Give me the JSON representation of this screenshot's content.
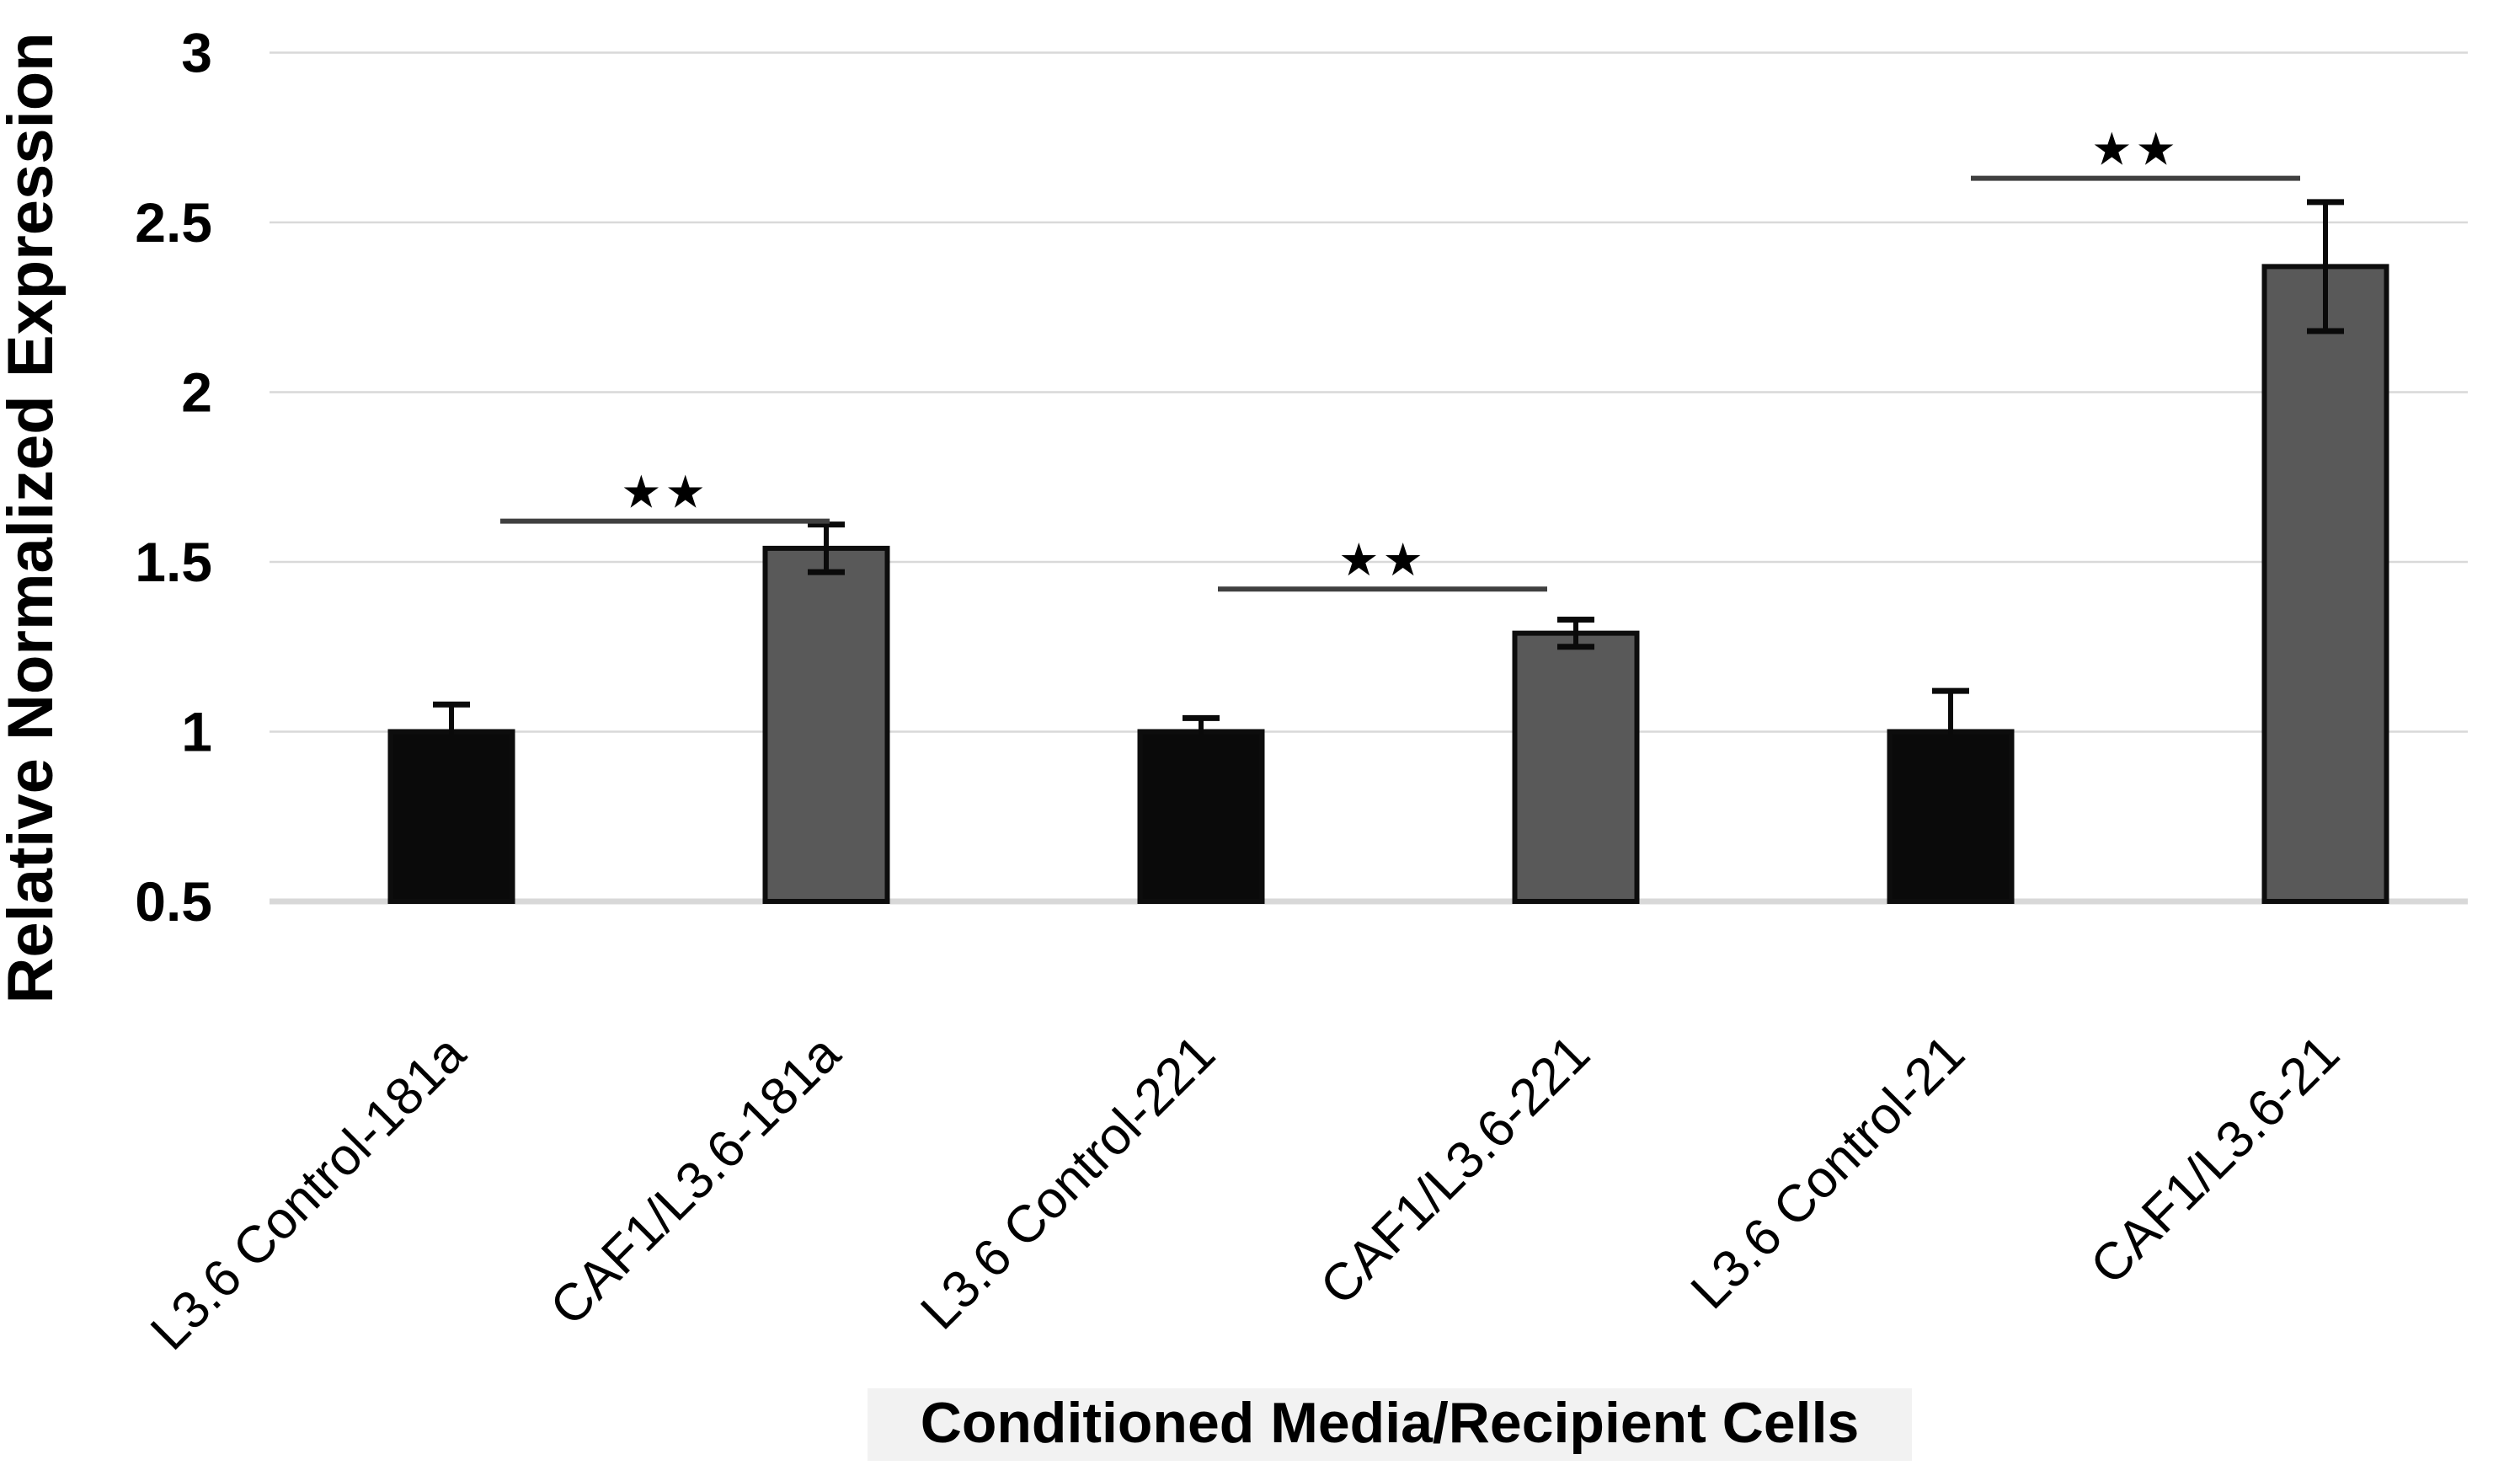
{
  "figure": {
    "kind": "bar-chart-with-error-bars",
    "background": "#ffffff"
  },
  "chart_data": {
    "type": "bar",
    "title": "",
    "xlabel": "Conditioned Media/Recipient Cells",
    "ylabel": "Relative Normalized Expression",
    "categories": [
      "L3.6 Control-181a",
      "CAF1/L3.6-181a",
      "L3.6 Control-221",
      "CAF1/L3.6-221",
      "L3.6 Control-21",
      "CAF1/L3.6-21"
    ],
    "values": [
      1.0,
      1.54,
      1.0,
      1.29,
      1.0,
      2.37
    ],
    "errors": [
      0.08,
      0.07,
      0.04,
      0.04,
      0.12,
      0.19
    ],
    "bar_colors": [
      "#0a0a0a",
      "#595959",
      "#0a0a0a",
      "#595959",
      "#0a0a0a",
      "#595959"
    ],
    "bar_border_color": "#0d0d0d",
    "ylim": [
      0.5,
      3.0
    ],
    "yticks": [
      0.5,
      1,
      1.5,
      2,
      2.5,
      3
    ],
    "ytick_labels": [
      "0.5",
      "1",
      "1.5",
      "2",
      "2.5",
      "3"
    ],
    "grid": true,
    "legend": "none",
    "significance": [
      {
        "between": [
          0,
          1
        ],
        "label": "**",
        "display": "★★",
        "line_value": 1.62,
        "x1_offset": 58,
        "x2_offset": 4
      },
      {
        "between": [
          2,
          3
        ],
        "label": "**",
        "display": "★★",
        "line_value": 1.42,
        "x1_offset": 20,
        "x2_offset": -34
      },
      {
        "between": [
          4,
          5
        ],
        "label": "**",
        "display": "★★",
        "line_value": 2.63,
        "x1_offset": 24,
        "x2_offset": -30
      }
    ],
    "colors": {
      "gridline": "#d9d9d9",
      "axis_line": "#d8d8d8",
      "error_bar": "#0a0a0a",
      "significance_line": "#404040",
      "significance_star": "#262626",
      "text": "#000000",
      "xlabel_band": "#f2f2f2"
    }
  }
}
